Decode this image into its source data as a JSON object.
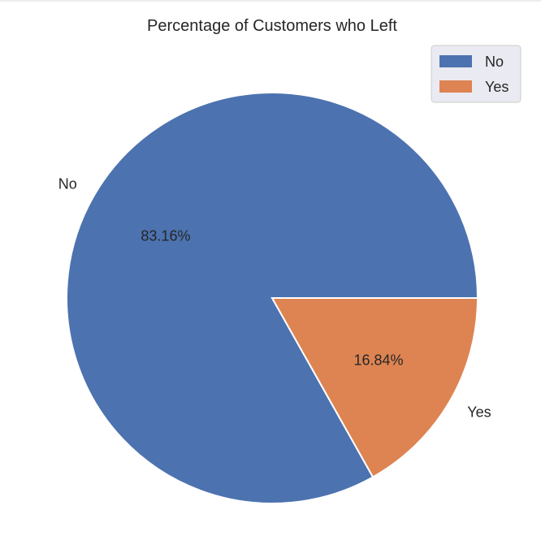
{
  "chart_data": {
    "type": "pie",
    "title": "Percentage of Customers who Left",
    "categories": [
      "No",
      "Yes"
    ],
    "values": [
      83.16,
      16.84
    ],
    "value_labels": [
      "83.16%",
      "16.84%"
    ],
    "colors": [
      "#4c72b0",
      "#dd8452"
    ],
    "start_angle": 0,
    "direction": "counterclockwise",
    "legend": {
      "placement": "top-right",
      "entries": [
        "No",
        "Yes"
      ]
    }
  }
}
